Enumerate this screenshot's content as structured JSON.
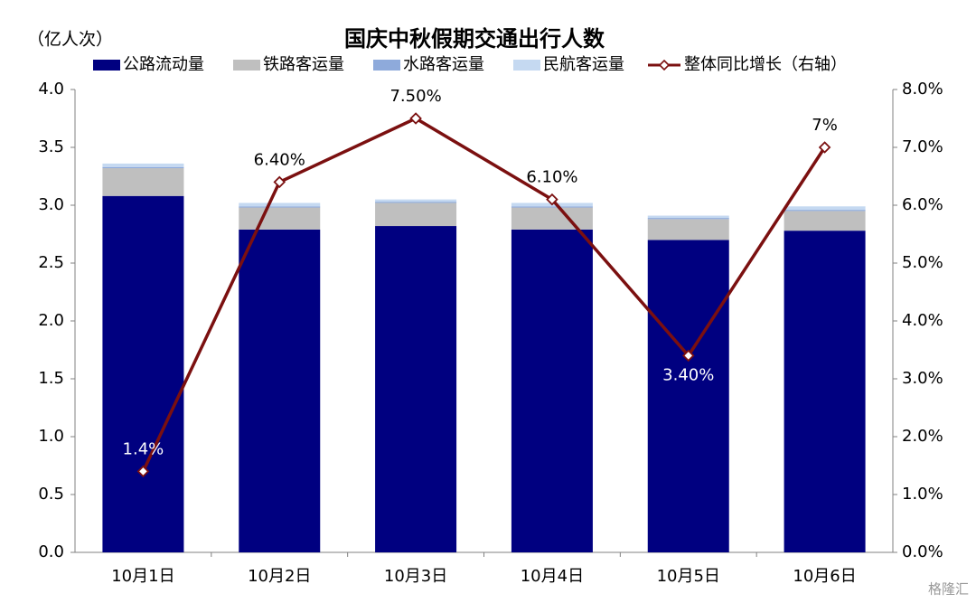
{
  "chart_data": {
    "type": "bar",
    "title": "国庆中秋假期交通出行人数",
    "y_axis_label": "（亿人次）",
    "categories": [
      "10月1日",
      "10月2日",
      "10月3日",
      "10月4日",
      "10月5日",
      "10月6日"
    ],
    "stacked": true,
    "series": [
      {
        "name": "公路流动量",
        "color": "#000080",
        "values": [
          3.08,
          2.79,
          2.82,
          2.79,
          2.7,
          2.78
        ]
      },
      {
        "name": "铁路客运量",
        "color": "#bfbfbf",
        "values": [
          0.24,
          0.19,
          0.2,
          0.19,
          0.18,
          0.17
        ]
      },
      {
        "name": "水路客运量",
        "color": "#8eaadb",
        "values": [
          0.01,
          0.01,
          0.01,
          0.01,
          0.01,
          0.01
        ]
      },
      {
        "name": "民航客运量",
        "color": "#c5d9f1",
        "values": [
          0.03,
          0.03,
          0.02,
          0.03,
          0.02,
          0.03
        ]
      },
      {
        "name": "整体同比增长（右轴）",
        "type": "line",
        "axis": "y2",
        "color": "#7b1010",
        "values": [
          1.4,
          6.4,
          7.5,
          6.1,
          3.4,
          7.0
        ],
        "value_labels": [
          "1.4%",
          "6.40%",
          "7.50%",
          "6.10%",
          "3.40%",
          "7%"
        ]
      }
    ],
    "ylim": [
      0,
      4
    ],
    "yticks": [
      {
        "value": 0,
        "label": "0.0"
      },
      0.5,
      {
        "value": 1,
        "label": "1.0"
      },
      1.5,
      {
        "value": 2,
        "label": "2.0"
      },
      2.5,
      {
        "value": 3,
        "label": "3.0"
      },
      3.5,
      {
        "value": 4,
        "label": "4.0"
      }
    ],
    "y2lim": [
      0,
      8
    ],
    "y2ticks": [
      {
        "value": 0,
        "label": "0.0%"
      },
      {
        "value": 1,
        "label": "1.0%"
      },
      {
        "value": 2,
        "label": "2.0%"
      },
      {
        "value": 3,
        "label": "3.0%"
      },
      {
        "value": 4,
        "label": "4.0%"
      },
      {
        "value": 5,
        "label": "5.0%"
      },
      {
        "value": 6,
        "label": "6.0%"
      },
      {
        "value": 7,
        "label": "7.0%"
      },
      {
        "value": 8,
        "label": "8.0%"
      }
    ],
    "grid": false,
    "watermark": "格隆汇"
  }
}
